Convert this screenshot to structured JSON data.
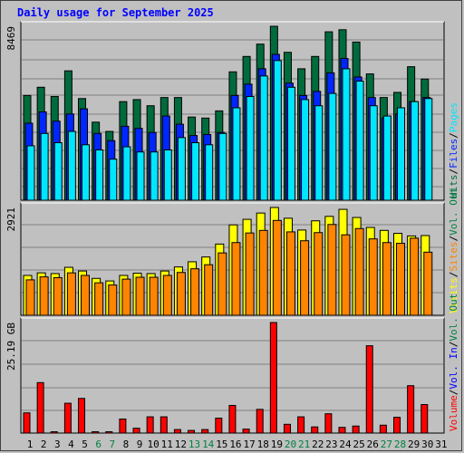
{
  "header": {
    "title": "Daily usage for September 2025"
  },
  "colors": {
    "hits": "#006b3c",
    "files": "#0026ff",
    "pages": "#00e6ff",
    "visits": "#ffff00",
    "sites": "#ff8400",
    "volume": "#ff0000",
    "xlabel_weekday": "#000000",
    "xlabel_weekend": "#008040",
    "sep_slash": "#000000"
  },
  "chart_data": [
    {
      "type": "bar",
      "panel": "hits-files-pages",
      "categories": [
        "1",
        "2",
        "3",
        "4",
        "5",
        "6",
        "7",
        "8",
        "9",
        "10",
        "11",
        "12",
        "13",
        "14",
        "15",
        "16",
        "17",
        "18",
        "19",
        "20",
        "21",
        "22",
        "23",
        "24",
        "25",
        "26",
        "27",
        "28",
        "29",
        "30"
      ],
      "ylim": [
        0,
        8469
      ],
      "ytick_label": "8469",
      "series": [
        {
          "name": "Hits",
          "values": [
            5100,
            5500,
            5050,
            6300,
            4950,
            3800,
            3350,
            4800,
            4900,
            4600,
            5000,
            5000,
            4050,
            4000,
            4350,
            6250,
            7000,
            7600,
            8469,
            7200,
            6400,
            7000,
            8200,
            8300,
            7700,
            6150,
            5000,
            5250,
            6500,
            5900
          ]
        },
        {
          "name": "Files",
          "values": [
            3750,
            4300,
            3850,
            4200,
            4450,
            3250,
            2900,
            3600,
            3500,
            3300,
            4100,
            3700,
            3150,
            3200,
            3300,
            5100,
            5650,
            6400,
            7100,
            5700,
            5100,
            5300,
            6200,
            6900,
            6000,
            5000,
            4000,
            4200,
            4800,
            5000
          ]
        },
        {
          "name": "Pages",
          "values": [
            2650,
            3250,
            2800,
            3350,
            2700,
            2450,
            2000,
            2600,
            2350,
            2350,
            2450,
            3050,
            2800,
            2700,
            3250,
            4500,
            5050,
            6050,
            6800,
            5500,
            4900,
            4600,
            5200,
            6400,
            5800,
            4600,
            4100,
            4500,
            4800,
            4950
          ]
        }
      ]
    },
    {
      "type": "bar",
      "panel": "visits-sites",
      "categories": [
        "1",
        "2",
        "3",
        "4",
        "5",
        "6",
        "7",
        "8",
        "9",
        "10",
        "11",
        "12",
        "13",
        "14",
        "15",
        "16",
        "17",
        "18",
        "19",
        "20",
        "21",
        "22",
        "23",
        "24",
        "25",
        "26",
        "27",
        "28",
        "29",
        "30"
      ],
      "ylim": [
        0,
        2921
      ],
      "ytick_label": "2921",
      "series": [
        {
          "name": "Visits",
          "values": [
            1080,
            1150,
            1130,
            1300,
            1200,
            1000,
            930,
            1080,
            1140,
            1130,
            1200,
            1310,
            1450,
            1580,
            1930,
            2450,
            2600,
            2770,
            2921,
            2630,
            2310,
            2560,
            2680,
            2870,
            2650,
            2380,
            2300,
            2220,
            2150,
            2160
          ]
        },
        {
          "name": "Sites",
          "values": [
            960,
            1040,
            1020,
            1150,
            1080,
            880,
            820,
            980,
            1030,
            1030,
            1080,
            1160,
            1260,
            1370,
            1690,
            1970,
            2230,
            2300,
            2570,
            2260,
            2020,
            2240,
            2460,
            2180,
            2350,
            2070,
            1970,
            1950,
            2090,
            1710
          ]
        }
      ]
    },
    {
      "type": "bar",
      "panel": "volume",
      "categories": [
        "1",
        "2",
        "3",
        "4",
        "5",
        "6",
        "7",
        "8",
        "9",
        "10",
        "11",
        "12",
        "13",
        "14",
        "15",
        "16",
        "17",
        "18",
        "19",
        "20",
        "21",
        "22",
        "23",
        "24",
        "25",
        "26",
        "27",
        "28",
        "29",
        "30"
      ],
      "ylim": [
        0,
        25.19
      ],
      "ytick_label": "25.19 GB",
      "series": [
        {
          "name": "Volume",
          "values": [
            4.6,
            11.5,
            0.3,
            6.8,
            7.9,
            0.3,
            0.3,
            3.2,
            1.1,
            3.7,
            3.7,
            0.8,
            0.6,
            0.8,
            3.4,
            6.3,
            0.9,
            5.4,
            25.19,
            2.0,
            3.7,
            1.4,
            4.4,
            1.3,
            1.6,
            19.9,
            1.8,
            3.6,
            10.8,
            6.5
          ]
        }
      ]
    }
  ],
  "right_legends": {
    "top": [
      {
        "text": "Hits",
        "color": "#006b3c"
      },
      {
        "text": "/",
        "color": "#000000"
      },
      {
        "text": "Files",
        "color": "#0026ff"
      },
      {
        "text": "/",
        "color": "#000000"
      },
      {
        "text": "Pages",
        "color": "#00e6ff"
      }
    ],
    "middle": [
      {
        "text": "Visits",
        "color": "#ffff00"
      },
      {
        "text": "/",
        "color": "#000000"
      },
      {
        "text": "Sites",
        "color": "#ff8400"
      },
      {
        "text": "/",
        "color": "#000000"
      },
      {
        "text": "Vol. Out",
        "color": "#008040"
      }
    ],
    "bottom": [
      {
        "text": "Volume",
        "color": "#ff0000"
      },
      {
        "text": "/",
        "color": "#000000"
      },
      {
        "text": "Vol. In",
        "color": "#0000ff"
      },
      {
        "text": "/",
        "color": "#000000"
      },
      {
        "text": "Vol. Out",
        "color": "#008040"
      }
    ]
  },
  "x_axis": {
    "labels": [
      "1",
      "2",
      "3",
      "4",
      "5",
      "6",
      "7",
      "8",
      "9",
      "10",
      "11",
      "12",
      "13",
      "14",
      "15",
      "16",
      "17",
      "18",
      "19",
      "20",
      "21",
      "22",
      "23",
      "24",
      "25",
      "26",
      "27",
      "28",
      "29",
      "30",
      "31"
    ],
    "weekend": [
      "6",
      "7",
      "13",
      "14",
      "20",
      "21",
      "27",
      "28"
    ]
  }
}
